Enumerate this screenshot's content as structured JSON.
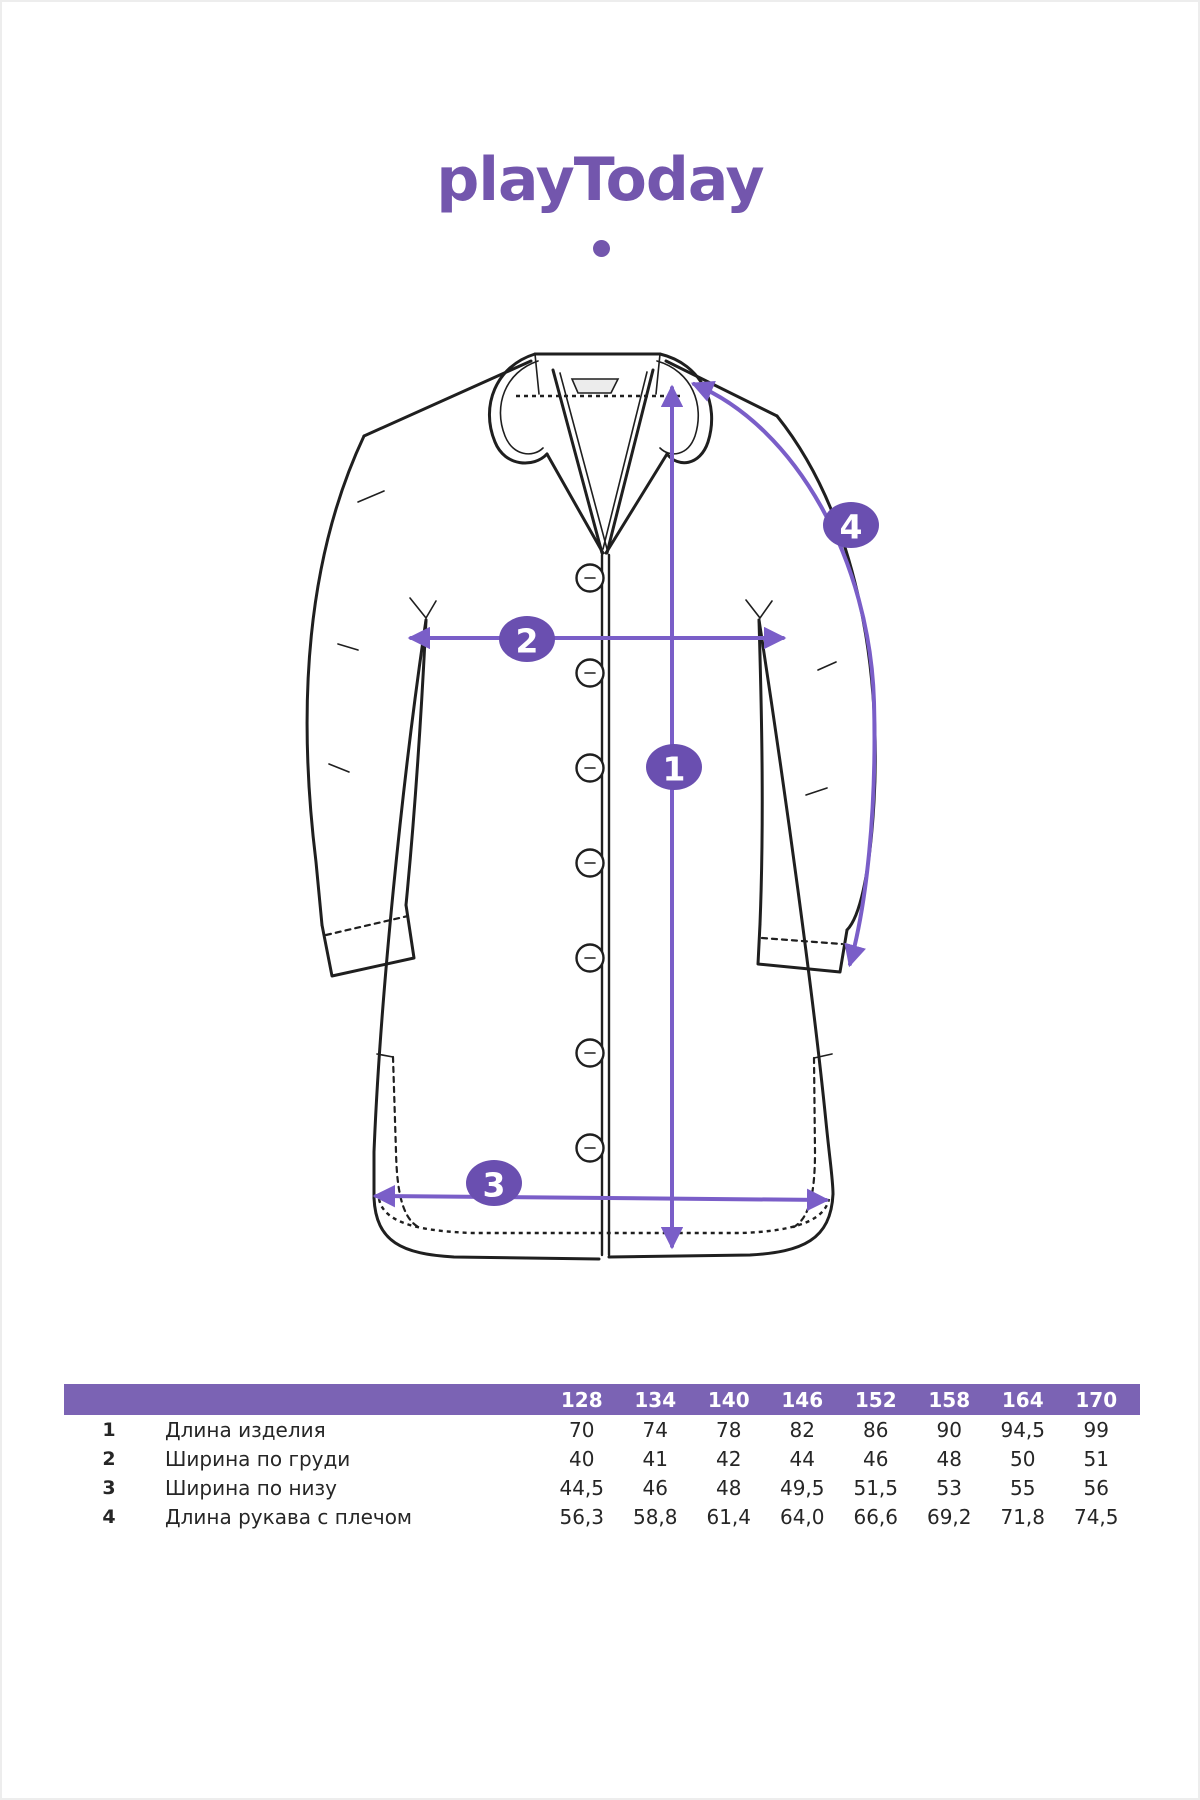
{
  "page": {
    "background": "#ffffff",
    "border_color": "#ededed"
  },
  "logo": {
    "text": "playToday",
    "color": "#7356ad"
  },
  "diagram": {
    "line_color": "#1f1f1f",
    "arrow_color": "#7a5ec8",
    "callout_fill": "#6a4fb0",
    "callout_text_color": "#ffffff",
    "callouts": [
      {
        "label": "1",
        "meaning": "Длина изделия"
      },
      {
        "label": "2",
        "meaning": "Ширина по груди"
      },
      {
        "label": "3",
        "meaning": "Ширина по низу"
      },
      {
        "label": "4",
        "meaning": "Длина рукава с плечом"
      }
    ]
  },
  "size_table": {
    "header_bg": "#7b63b4",
    "header_text_color": "#ffffff",
    "sizes": [
      "128",
      "134",
      "140",
      "146",
      "152",
      "158",
      "164",
      "170"
    ],
    "rows": [
      {
        "num": "1",
        "label": "Длина изделия",
        "values": [
          "70",
          "74",
          "78",
          "82",
          "86",
          "90",
          "94,5",
          "99"
        ]
      },
      {
        "num": "2",
        "label": "Ширина по груди",
        "values": [
          "40",
          "41",
          "42",
          "44",
          "46",
          "48",
          "50",
          "51"
        ]
      },
      {
        "num": "3",
        "label": "Ширина по низу",
        "values": [
          "44,5",
          "46",
          "48",
          "49,5",
          "51,5",
          "53",
          "55",
          "56"
        ]
      },
      {
        "num": "4",
        "label": "Длина рукава с плечом",
        "values": [
          "56,3",
          "58,8",
          "61,4",
          "64,0",
          "66,6",
          "69,2",
          "71,8",
          "74,5"
        ]
      }
    ]
  }
}
